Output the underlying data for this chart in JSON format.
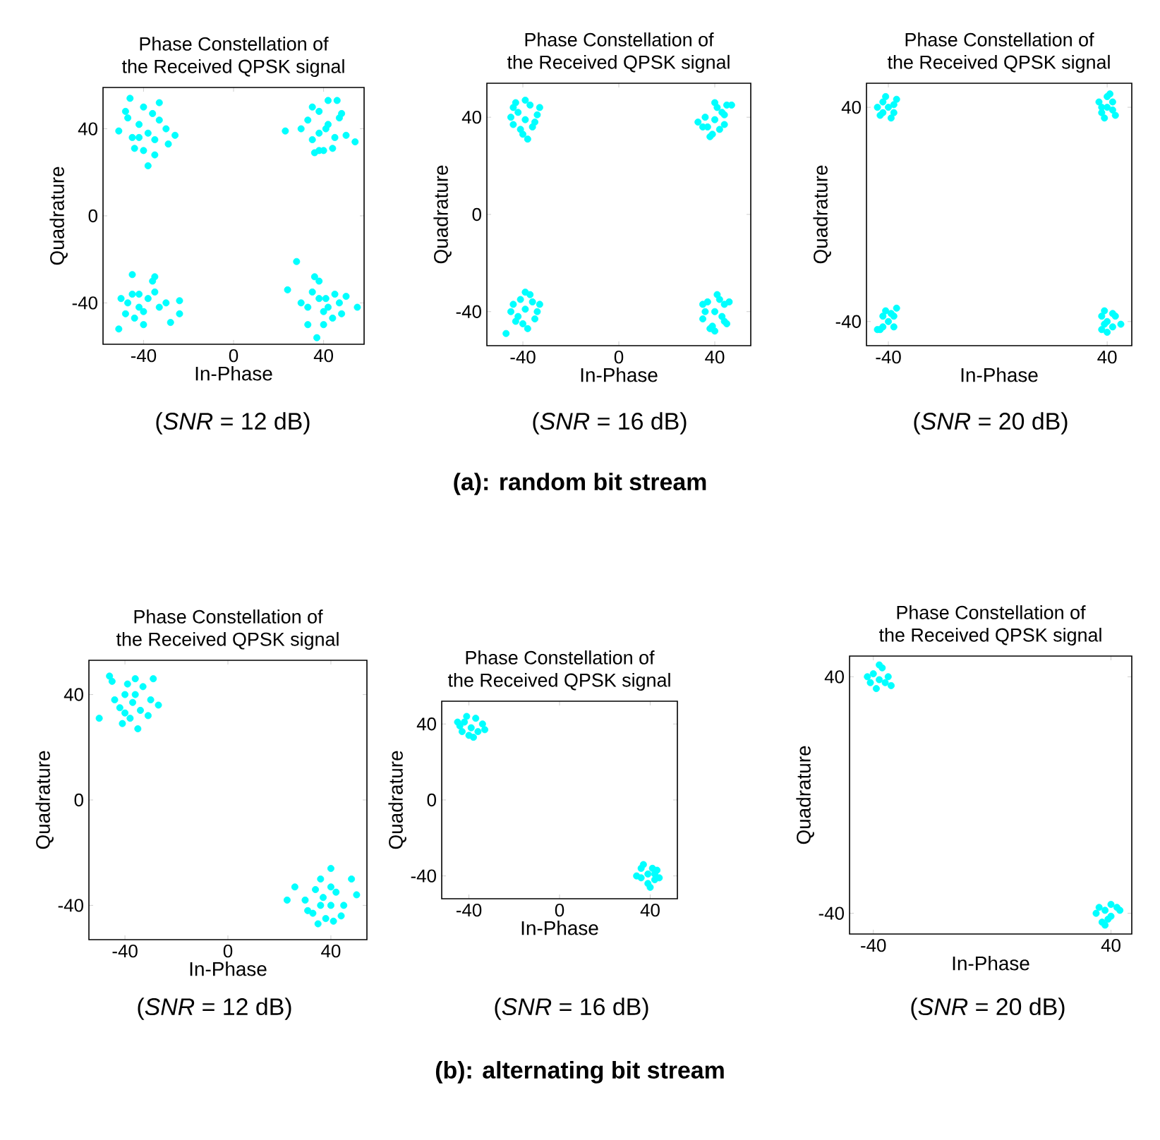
{
  "chart_data": [
    {
      "type": "scatter",
      "title": "Phase Constellation of",
      "subtitle": "the Received QPSK signal",
      "xlabel": "In-Phase",
      "ylabel": "Quadrature",
      "color": "#00ffff",
      "marker": "circle",
      "xlim": [
        -58,
        58
      ],
      "ylim": [
        -59,
        59
      ],
      "xticks": [
        -40,
        0,
        40
      ],
      "yticks": [
        -40,
        0,
        40
      ],
      "annotations": [
        "(*SNR* = 12 dB)"
      ],
      "x": [
        -38,
        -42,
        -35,
        -45,
        -40,
        -33,
        -47,
        -30,
        -36,
        -44,
        -51,
        -26,
        -38,
        -46,
        -33,
        -40,
        -29,
        -48,
        -35,
        -42,
        38,
        42,
        35,
        45,
        40,
        33,
        47,
        30,
        38,
        44,
        50,
        23,
        38,
        42,
        46,
        35,
        54,
        48,
        36,
        41,
        -38,
        -42,
        -35,
        -45,
        -40,
        -33,
        -47,
        -30,
        -36,
        -44,
        -50,
        -24,
        -45,
        -51,
        -28,
        -40,
        -24,
        -48,
        -35,
        -42,
        38,
        42,
        35,
        45,
        40,
        33,
        47,
        30,
        38,
        44,
        50,
        24,
        28,
        37,
        55,
        40,
        33,
        48,
        36,
        41
      ],
      "values": [
        38,
        42,
        35,
        36,
        30,
        44,
        45,
        40,
        47,
        31,
        39,
        37,
        23,
        54,
        52,
        50,
        33,
        48,
        28,
        36,
        38,
        42,
        35,
        36,
        30,
        44,
        45,
        40,
        48,
        31,
        37,
        39,
        30,
        53,
        53,
        50,
        34,
        47,
        29,
        40,
        -38,
        -42,
        -35,
        -36,
        -44,
        -42,
        -40,
        -40,
        -30,
        -47,
        -38,
        -39,
        -27,
        -52,
        -49,
        -50,
        -45,
        -45,
        -28,
        -36,
        -38,
        -42,
        -35,
        -36,
        -44,
        -42,
        -40,
        -40,
        -30,
        -47,
        -37,
        -34,
        -21,
        -56,
        -42,
        -50,
        -50,
        -45,
        -28,
        -38
      ]
    },
    {
      "type": "scatter",
      "title": "Phase Constellation of",
      "subtitle": "the Received QPSK signal",
      "xlabel": "In-Phase",
      "ylabel": "Quadrature",
      "color": "#00ffff",
      "marker": "circle",
      "xlim": [
        -55,
        55
      ],
      "ylim": [
        -54,
        54
      ],
      "xticks": [
        -40,
        0,
        40
      ],
      "yticks": [
        -40,
        0,
        40
      ],
      "annotations": [
        "(*SNR* = 16 dB)",
        "(a): random bit stream"
      ],
      "x": [
        -39,
        -42,
        -36,
        -44,
        -40,
        -37,
        -43,
        -34,
        -45,
        -38,
        -33,
        -41,
        -35,
        -44,
        -39,
        40,
        43,
        37,
        44,
        39,
        36,
        45,
        33,
        41,
        38,
        47,
        42,
        35,
        44,
        40,
        -39,
        -42,
        -36,
        -44,
        -40,
        -37,
        -43,
        -34,
        -45,
        -38,
        -33,
        -41,
        -35,
        -47,
        -39,
        40,
        43,
        37,
        44,
        39,
        36,
        45,
        35,
        41,
        38,
        46,
        42,
        35,
        44,
        40
      ],
      "values": [
        39,
        42,
        36,
        37,
        33,
        45,
        46,
        41,
        40,
        31,
        44,
        35,
        38,
        44,
        47,
        39,
        42,
        36,
        37,
        33,
        40,
        45,
        38,
        44,
        32,
        45,
        35,
        36,
        41,
        46,
        -39,
        -42,
        -36,
        -37,
        -45,
        -33,
        -44,
        -40,
        -40,
        -47,
        -37,
        -35,
        -43,
        -49,
        -32,
        -40,
        -42,
        -36,
        -37,
        -46,
        -40,
        -45,
        -43,
        -33,
        -47,
        -36,
        -35,
        -37,
        -44,
        -48
      ]
    },
    {
      "type": "scatter",
      "title": "Phase Constellation of",
      "subtitle": "the Received QPSK signal",
      "xlabel": "In-Phase",
      "ylabel": "Quadrature",
      "color": "#00ffff",
      "marker": "circle",
      "xlim": [
        -48,
        49
      ],
      "ylim": [
        -49,
        49
      ],
      "xticks": [
        -40,
        40
      ],
      "yticks": [
        -40,
        40
      ],
      "annotations": [
        "(*SNR* = 20 dB)"
      ],
      "x": [
        -40,
        -42,
        -38,
        -43,
        -41,
        -37,
        -42,
        -38,
        -44,
        -39,
        40,
        42,
        38,
        43,
        40,
        37,
        42,
        39,
        41,
        38,
        -40,
        -42,
        -38,
        -43,
        -41,
        -37,
        -42,
        -38,
        -44,
        -39,
        40,
        42,
        38,
        43,
        40,
        38,
        42,
        39,
        45,
        39
      ],
      "values": [
        40,
        42,
        38,
        37,
        44,
        43,
        38,
        41,
        40,
        36,
        40,
        42,
        38,
        37,
        44,
        42,
        39,
        36,
        45,
        40,
        -40,
        -42,
        -38,
        -43,
        -36,
        -35,
        -38,
        -42,
        -43,
        -37,
        -40,
        -42,
        -38,
        -38,
        -44,
        -43,
        -37,
        -36,
        -41,
        -41
      ]
    },
    {
      "type": "scatter",
      "title": "Phase Constellation of",
      "subtitle": "the Received QPSK signal",
      "xlabel": "In-Phase",
      "ylabel": "Quadrature",
      "color": "#00ffff",
      "marker": "circle",
      "xlim": [
        -54,
        54
      ],
      "ylim": [
        -53,
        53
      ],
      "xticks": [
        -40,
        0,
        40
      ],
      "yticks": [
        -40,
        0,
        40
      ],
      "annotations": [
        "(*SNR* = 12 dB)"
      ],
      "x": [
        -37,
        -40,
        -34,
        -42,
        -38,
        -33,
        -45,
        -30,
        -36,
        -41,
        -50,
        -27,
        -35,
        -46,
        -29,
        -39,
        -31,
        -44,
        -36,
        -40,
        37,
        40,
        34,
        42,
        38,
        33,
        45,
        30,
        36,
        41,
        50,
        23,
        40,
        48,
        26,
        35,
        31,
        44,
        36,
        40
      ],
      "values": [
        37,
        40,
        34,
        35,
        31,
        43,
        45,
        38,
        46,
        29,
        31,
        36,
        27,
        47,
        46,
        44,
        32,
        38,
        40,
        33,
        -37,
        -40,
        -34,
        -35,
        -45,
        -43,
        -40,
        -38,
        -30,
        -46,
        -36,
        -38,
        -26,
        -30,
        -33,
        -47,
        -42,
        -44,
        -40,
        -33
      ]
    },
    {
      "type": "scatter",
      "title": "Phase Constellation of",
      "subtitle": "the Received QPSK signal",
      "xlabel": "In-Phase",
      "ylabel": "Quadrature",
      "color": "#00ffff",
      "marker": "circle",
      "xlim": [
        -52,
        52
      ],
      "ylim": [
        -52,
        52
      ],
      "xticks": [
        -40,
        0,
        40
      ],
      "yticks": [
        -40,
        0,
        40
      ],
      "annotations": [
        "(*SNR* = 16 dB)",
        "(b): alternating bit stream"
      ],
      "x": [
        -39,
        -42,
        -36,
        -44,
        -40,
        -37,
        -43,
        -34,
        -45,
        -38,
        -33,
        -41,
        39,
        42,
        36,
        43,
        39,
        36,
        44,
        37,
        41,
        40,
        34,
        42
      ],
      "values": [
        38,
        41,
        36,
        39,
        34,
        43,
        36,
        40,
        41,
        33,
        37,
        44,
        -39,
        -42,
        -36,
        -37,
        -44,
        -41,
        -41,
        -34,
        -36,
        -46,
        -40,
        -39
      ]
    },
    {
      "type": "scatter",
      "title": "Phase Constellation of",
      "subtitle": "the Received QPSK signal",
      "xlabel": "In-Phase",
      "ylabel": "Quadrature",
      "color": "#00ffff",
      "marker": "circle",
      "xlim": [
        -48,
        47
      ],
      "ylim": [
        -47,
        47
      ],
      "xticks": [
        -40,
        40
      ],
      "yticks": [
        -40,
        40
      ],
      "annotations": [
        "(*SNR* = 20 dB)"
      ],
      "x": [
        -38,
        -40,
        -36,
        -42,
        -39,
        -37,
        -34,
        -38,
        -41,
        -35,
        38,
        40,
        36,
        42,
        39,
        37,
        43,
        35,
        40,
        38
      ],
      "values": [
        39,
        41,
        38,
        40,
        36,
        43,
        37,
        44,
        38,
        40,
        -39,
        -41,
        -38,
        -38,
        -42,
        -43,
        -39,
        -40,
        -37,
        -44
      ]
    }
  ]
}
